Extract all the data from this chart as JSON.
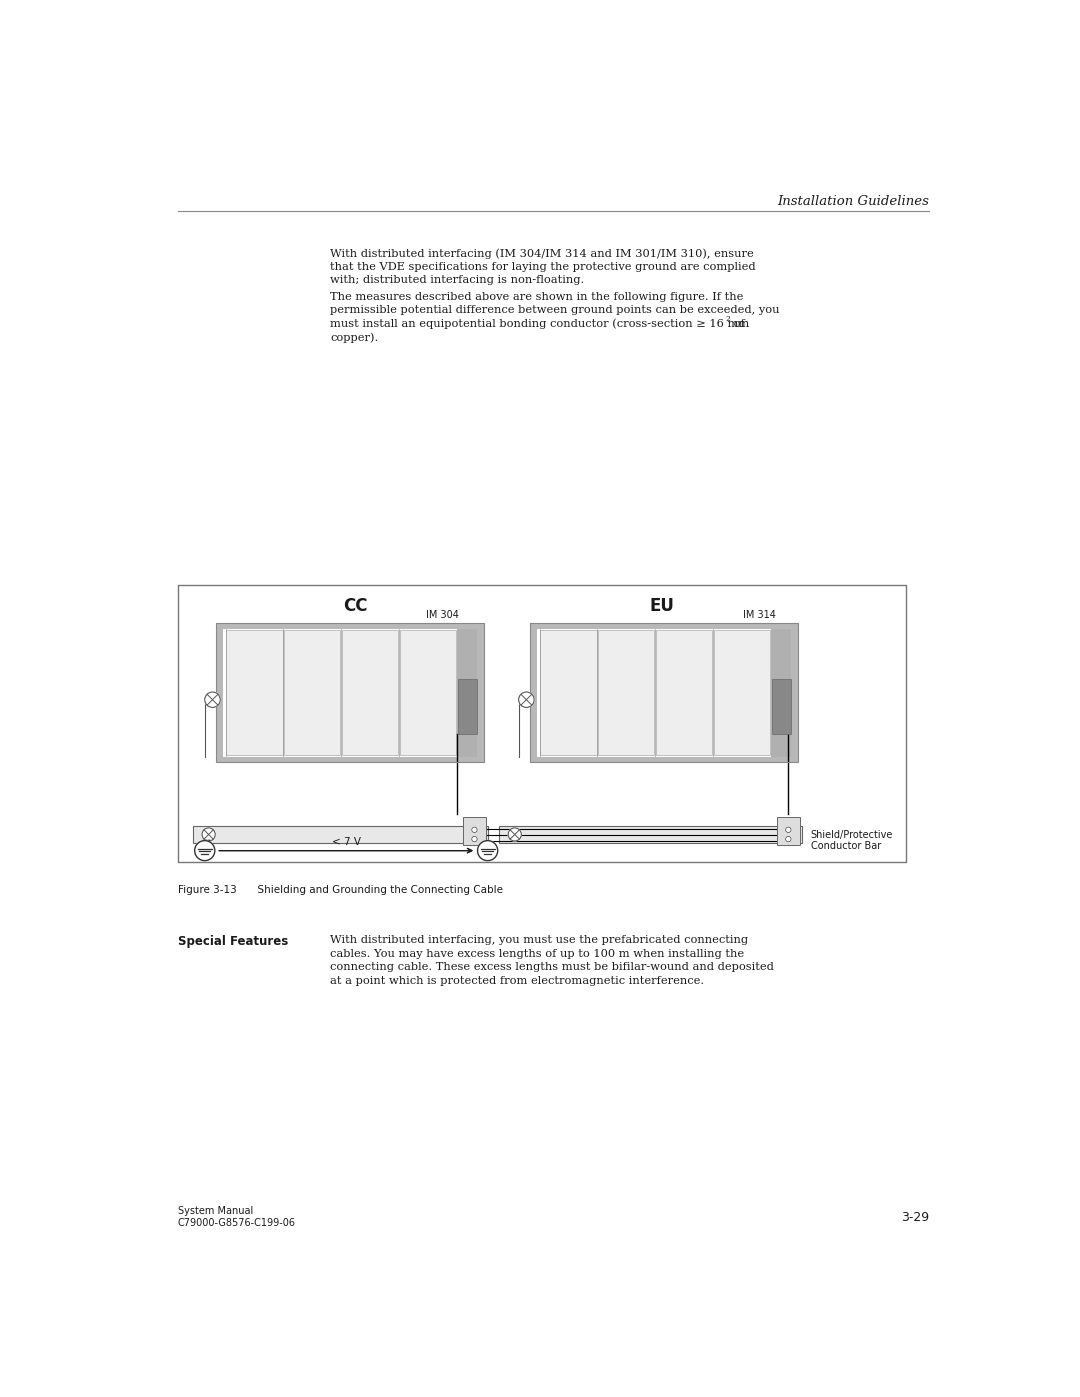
{
  "page_width": 10.8,
  "page_height": 13.97,
  "bg_color": "#ffffff",
  "header_text": "Installation Guidelines",
  "footer_left_line1": "System Manual",
  "footer_left_line2": "C79000-G8576-C199-06",
  "footer_right": "3-29",
  "para1_line1": "With distributed interfacing (IM 304/IM 314 and IM 301/IM 310), ensure",
  "para1_line2": "that the VDE specifications for laying the protective ground are complied",
  "para1_line3": "with; distributed interfacing is non-floating.",
  "para2_line1": "The measures described above are shown in the following figure. If the",
  "para2_line2": "permissible potential difference between ground points can be exceeded, you",
  "para2_line3": "must install an equipotential bonding conductor (cross-section ≥ 16 mm",
  "para2_line3b": " of",
  "para2_line4": "copper).",
  "fig_caption": "Figure 3-13  Shielding and Grounding the Connecting Cable",
  "special_label": "Special Features",
  "special_text_line1": "With distributed interfacing, you must use the prefabricated connecting",
  "special_text_line2": "cables. You may have excess lengths of up to 100 m when installing the",
  "special_text_line3": "connecting cable. These excess lengths must be bifilar-wound and deposited",
  "special_text_line4": "at a point which is protected from electromagnetic interference.",
  "cc_label": "CC",
  "eu_label": "EU",
  "im304_label": "IM 304",
  "im314_label": "IM 314",
  "shield_label_line1": "Shield/Protective",
  "shield_label_line2": "Conductor Bar",
  "voltage_label": "< 7 V",
  "tc": "#1a1a1a",
  "lc": "#555555",
  "rack_frame": "#b0b0b0",
  "rack_light": "#e8e8e8",
  "rack_mid": "#d0d0d0",
  "rack_dark_strip": "#888888",
  "rack_side": "#b8b8b8",
  "im_color": "#888888",
  "bar_color": "#e0e0e0",
  "wire_color": "#000000"
}
